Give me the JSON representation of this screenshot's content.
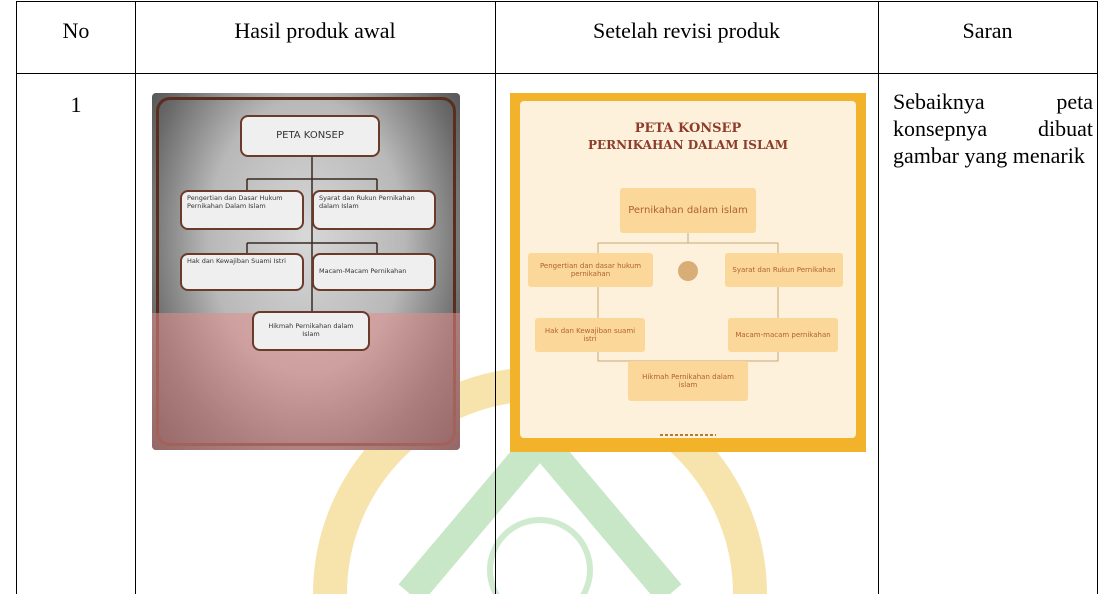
{
  "table": {
    "header": [
      "No",
      "Hasil produk awal",
      "Setelah revisi produk",
      "Saran"
    ],
    "rows": [
      {
        "no": "1",
        "initial_map": {
          "title": "PETA KONSEP",
          "nodes": [
            "Pengertian dan Dasar Hukum Pernikahan Dalam Islam",
            "Syarat dan Rukun Pernikahan dalam Islam",
            "Hak dan Kewajiban Suami Istri",
            "Macam-Macam Pernikahan",
            "Hikmah Pernikahan dalam Islam"
          ]
        },
        "revised_map": {
          "title": [
            "PETA KONSEP",
            "PERNIKAHAN DALAM ISLAM"
          ],
          "root": "Pernikahan dalam islam",
          "nodes": [
            "Pengertian dan dasar hukum pernikahan",
            "Syarat dan Rukun Pernikahan",
            "Hak dan Kewajiban suami istri",
            "Macam-macam pernikahan",
            "Hikmah Pernikahan dalam islam"
          ]
        },
        "suggestion": "Sebaiknya peta konsepnya dibuat gambar yang menarik"
      }
    ]
  }
}
